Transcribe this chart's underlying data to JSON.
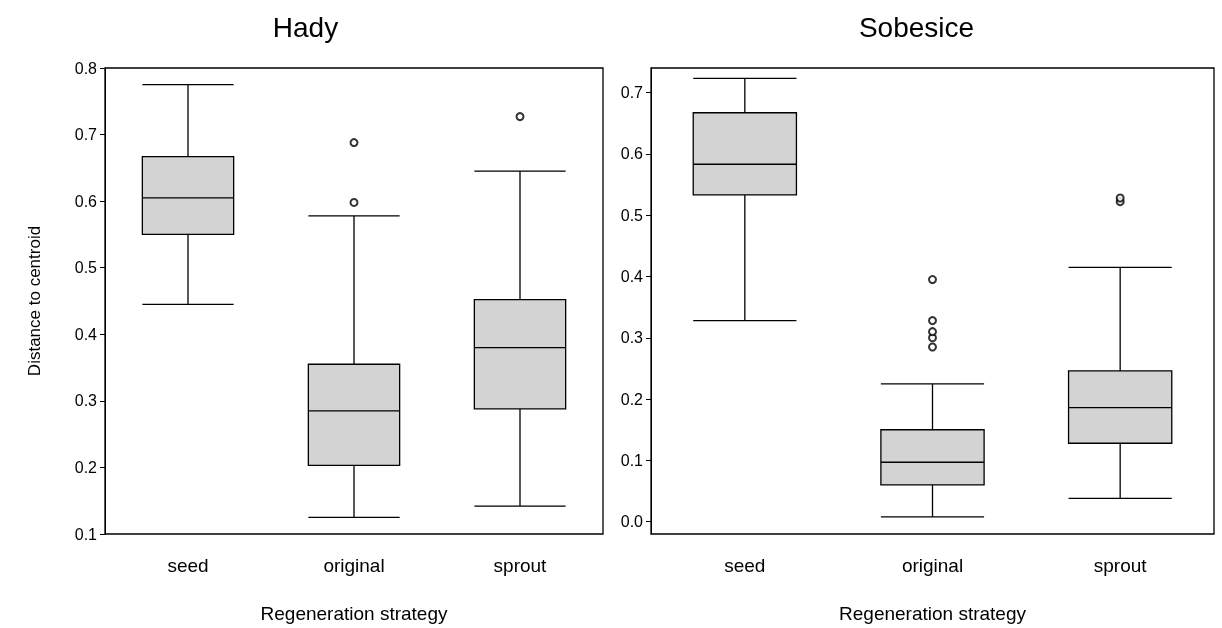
{
  "chart_data": [
    {
      "type": "box",
      "title": "Hady",
      "xlabel": "Regeneration strategy",
      "ylabel": "Distance to centroid",
      "categories": [
        "seed",
        "original",
        "sprout"
      ],
      "color": "#d3d3d3",
      "ylim": [
        0.1,
        0.8
      ],
      "yticks": [
        0.1,
        0.2,
        0.3,
        0.4,
        0.5,
        0.6,
        0.7,
        0.8
      ],
      "grid": false,
      "legend": false,
      "boxes": [
        {
          "low": 0.445,
          "q1": 0.55,
          "median": 0.605,
          "q3": 0.667,
          "high": 0.775
        },
        {
          "low": 0.125,
          "q1": 0.203,
          "median": 0.285,
          "q3": 0.355,
          "high": 0.578,
          "outliers": [
            0.598,
            0.688
          ]
        },
        {
          "low": 0.142,
          "q1": 0.288,
          "median": 0.38,
          "q3": 0.452,
          "high": 0.645,
          "outliers": [
            0.727
          ]
        }
      ]
    },
    {
      "type": "box",
      "title": "Sobesice",
      "xlabel": "Regeneration strategy",
      "categories": [
        "seed",
        "original",
        "sprout"
      ],
      "color": "#d3d3d3",
      "ylim": [
        -0.02,
        0.74
      ],
      "yticks": [
        {
          "value": 0,
          "label": "0.0"
        },
        0.1,
        0.2,
        0.3,
        0.4,
        0.5,
        0.6,
        0.7
      ],
      "grid": false,
      "legend": false,
      "boxes": [
        {
          "low": 0.328,
          "q1": 0.533,
          "median": 0.583,
          "q3": 0.667,
          "high": 0.723
        },
        {
          "low": 0.008,
          "q1": 0.06,
          "median": 0.097,
          "q3": 0.15,
          "high": 0.225,
          "outliers": [
            0.285,
            0.3,
            0.31,
            0.328,
            0.395
          ]
        },
        {
          "low": 0.038,
          "q1": 0.128,
          "median": 0.186,
          "q3": 0.246,
          "high": 0.415,
          "outliers": [
            0.522,
            0.528
          ]
        }
      ]
    }
  ]
}
